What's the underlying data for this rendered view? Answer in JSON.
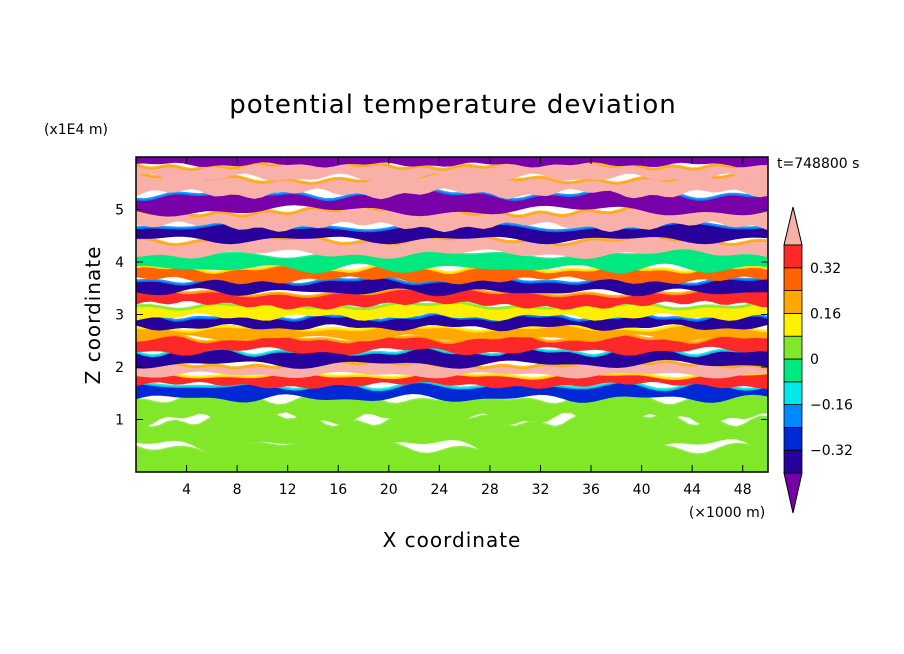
{
  "chart_data": {
    "type": "heatmap",
    "subtype": "filled-contour",
    "title": "potential temperature deviation",
    "xlabel": "X coordinate",
    "ylabel": "Z coordinate",
    "x_unit": "(×1000 m)",
    "y_unit": "(x1E4 m)",
    "time_label": "t=748800 s",
    "xlim": [
      0,
      50
    ],
    "ylim": [
      0,
      6
    ],
    "xticks": [
      4,
      8,
      12,
      16,
      20,
      24,
      28,
      32,
      36,
      40,
      44,
      48
    ],
    "yticks": [
      1,
      2,
      3,
      4,
      5
    ],
    "colorbar": {
      "levels": [
        -0.4,
        -0.32,
        -0.24,
        -0.16,
        -0.08,
        0,
        0.08,
        0.16,
        0.24,
        0.32,
        0.4
      ],
      "tick_labels": [
        "0.32",
        "0.16",
        "0",
        "−0.16",
        "−0.32"
      ],
      "tick_values": [
        0.32,
        0.16,
        0,
        -0.16,
        -0.32
      ],
      "colors": [
        "#7800a8",
        "#28009c",
        "#0028d4",
        "#0088ff",
        "#00e8e8",
        "#00e880",
        "#80e828",
        "#fff000",
        "#ffa800",
        "#ff6400",
        "#ff2828",
        "#f8b0a8"
      ],
      "extend": "both"
    },
    "bands": [
      {
        "z": 0.25,
        "value": 0.05
      },
      {
        "z": 0.75,
        "value": 0.0
      },
      {
        "z": 1.25,
        "value": 0.0
      },
      {
        "z": 1.55,
        "value": -0.3
      },
      {
        "z": 1.75,
        "value": 0.32
      },
      {
        "z": 1.95,
        "value": 0.45
      },
      {
        "z": 2.15,
        "value": -0.35
      },
      {
        "z": 2.45,
        "value": 0.38
      },
      {
        "z": 2.65,
        "value": 0.2
      },
      {
        "z": 2.85,
        "value": -0.4
      },
      {
        "z": 3.05,
        "value": 0.1
      },
      {
        "z": 3.3,
        "value": 0.36
      },
      {
        "z": 3.55,
        "value": -0.38
      },
      {
        "z": 3.75,
        "value": 0.3
      },
      {
        "z": 4.0,
        "value": -0.05
      },
      {
        "z": 4.3,
        "value": 0.42
      },
      {
        "z": 4.55,
        "value": -0.38
      },
      {
        "z": 4.8,
        "value": 0.45
      },
      {
        "z": 5.15,
        "value": -0.42
      },
      {
        "z": 5.45,
        "value": 0.45
      },
      {
        "z": 5.75,
        "value": 0.45
      },
      {
        "z": 5.95,
        "value": -0.45
      }
    ]
  }
}
